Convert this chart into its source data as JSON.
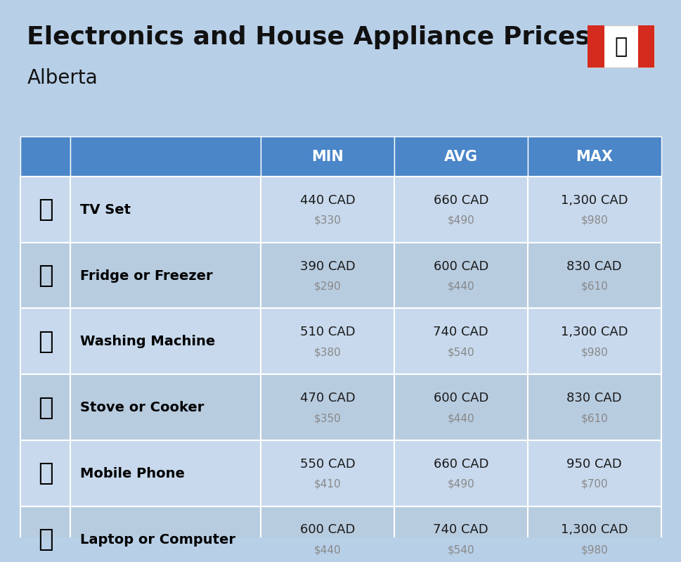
{
  "title": "Electronics and House Appliance Prices",
  "subtitle": "Alberta",
  "bg_color": "#b8cfe8",
  "header_bg_color": "#4a86c8",
  "header_text_color": "#ffffff",
  "row_bg_color_light": "#c8d9ed",
  "row_bg_color_dark": "#b8cce0",
  "cell_border_color": "#7aaad4",
  "icon_col_color": "#9db8d6",
  "columns": [
    "",
    "",
    "MIN",
    "AVG",
    "MAX"
  ],
  "rows": [
    {
      "name": "TV Set",
      "min_cad": "440 CAD",
      "min_usd": "$330",
      "avg_cad": "660 CAD",
      "avg_usd": "$490",
      "max_cad": "1,300 CAD",
      "max_usd": "$980",
      "emoji": "📺"
    },
    {
      "name": "Fridge or Freezer",
      "min_cad": "390 CAD",
      "min_usd": "$290",
      "avg_cad": "600 CAD",
      "avg_usd": "$440",
      "max_cad": "830 CAD",
      "max_usd": "$610",
      "emoji": "🧀"
    },
    {
      "name": "Washing Machine",
      "min_cad": "510 CAD",
      "min_usd": "$380",
      "avg_cad": "740 CAD",
      "avg_usd": "$540",
      "max_cad": "1,300 CAD",
      "max_usd": "$980",
      "emoji": "🧹"
    },
    {
      "name": "Stove or Cooker",
      "min_cad": "470 CAD",
      "min_usd": "$350",
      "avg_cad": "600 CAD",
      "avg_usd": "$440",
      "max_cad": "830 CAD",
      "max_usd": "$610",
      "emoji": "🔥"
    },
    {
      "name": "Mobile Phone",
      "min_cad": "550 CAD",
      "min_usd": "$410",
      "avg_cad": "660 CAD",
      "avg_usd": "$490",
      "max_cad": "950 CAD",
      "max_usd": "$700",
      "emoji": "📱"
    },
    {
      "name": "Laptop or Computer",
      "min_cad": "600 CAD",
      "min_usd": "$440",
      "avg_cad": "740 CAD",
      "avg_usd": "$540",
      "max_cad": "1,300 CAD",
      "max_usd": "$980",
      "emoji": "💻"
    }
  ],
  "title_fontsize": 26,
  "subtitle_fontsize": 20,
  "header_fontsize": 15,
  "name_fontsize": 14,
  "value_fontsize": 13,
  "usd_fontsize": 11,
  "usd_color": "#888888",
  "name_color": "#000000",
  "value_color": "#1a1a1a"
}
